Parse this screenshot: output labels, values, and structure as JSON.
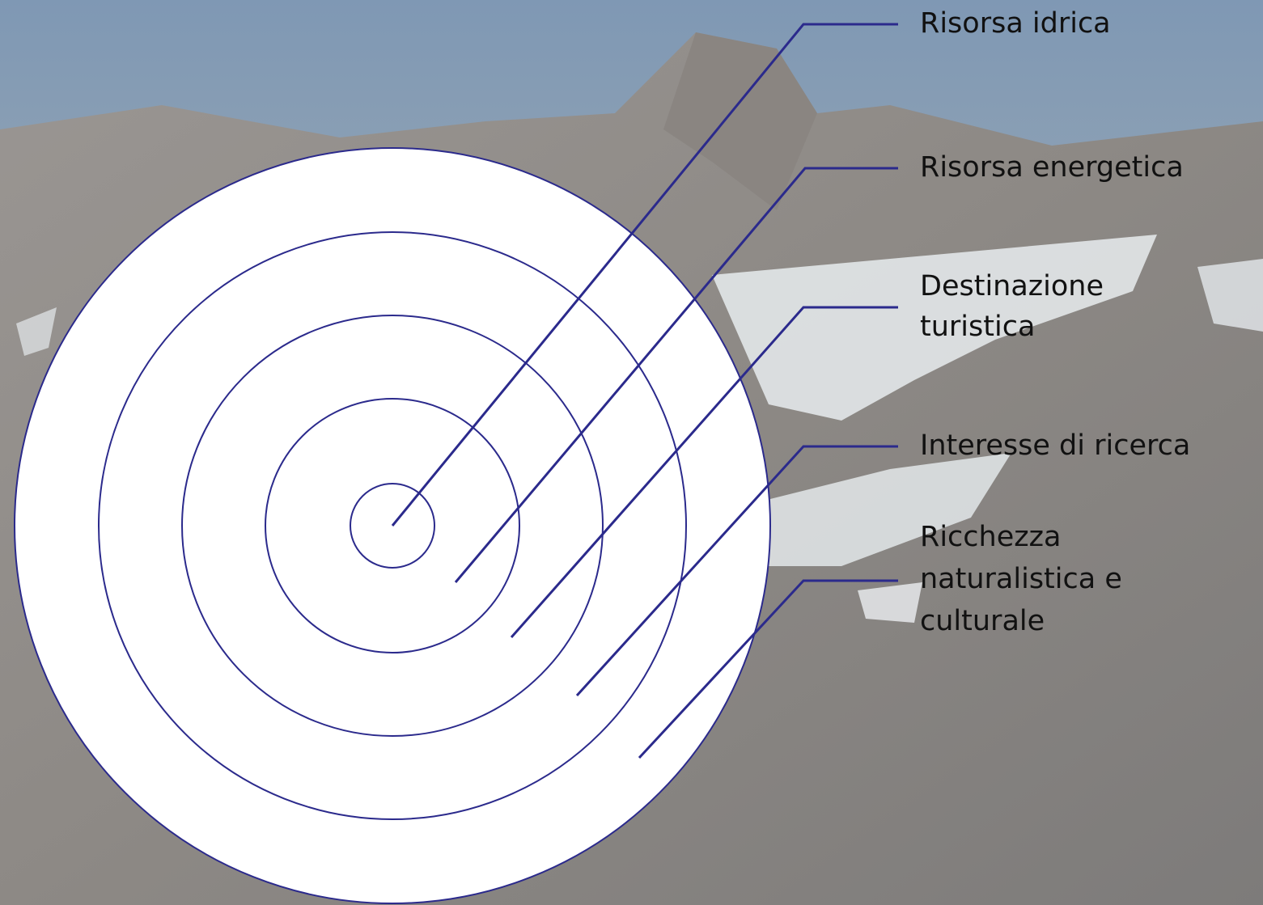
{
  "nodes": [
    {
      "lines": [
        "Risorsa idrica"
      ]
    },
    {
      "lines": [
        "Risorsa energetica"
      ]
    },
    {
      "lines": [
        "Destinazione",
        "turistica"
      ]
    },
    {
      "lines": [
        "Interesse di ricerca"
      ]
    },
    {
      "lines": [
        "Ricchezza",
        "naturalistica e",
        "culturale"
      ]
    }
  ]
}
